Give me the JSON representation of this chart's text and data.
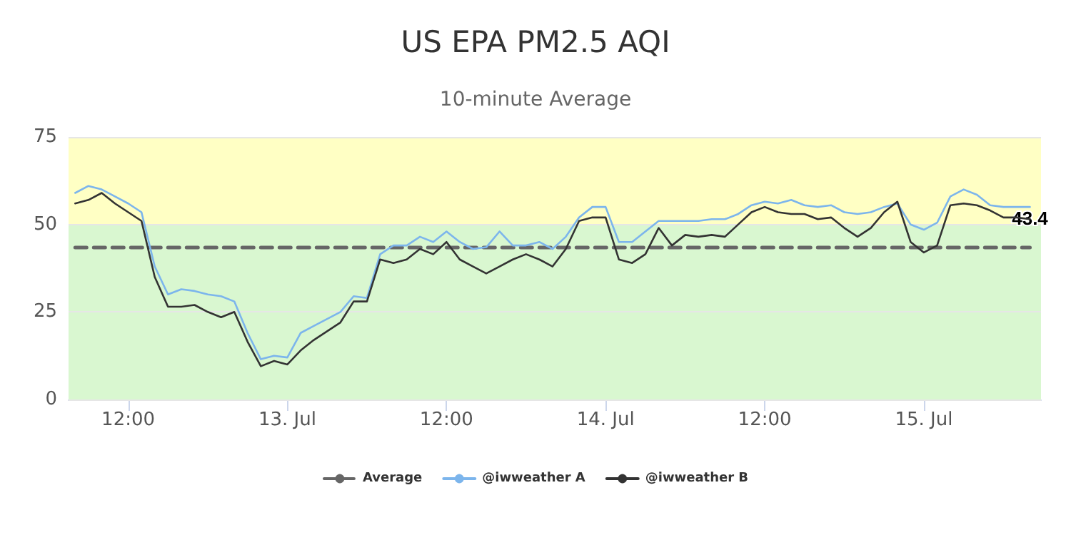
{
  "chart_data": {
    "type": "line",
    "title": "US EPA PM2.5 AQI",
    "subtitle": "10-minute Average",
    "x": [
      "--07-12T08:00",
      "--07-12T09:00",
      "--07-12T10:00",
      "--07-12T11:00",
      "--07-12T12:00",
      "--07-12T13:00",
      "--07-12T14:00",
      "--07-12T15:00",
      "--07-12T16:00",
      "--07-12T17:00",
      "--07-12T18:00",
      "--07-12T19:00",
      "--07-12T20:00",
      "--07-12T21:00",
      "--07-12T22:00",
      "--07-12T23:00",
      "--07-13T00:00",
      "--07-13T01:00",
      "--07-13T02:00",
      "--07-13T03:00",
      "--07-13T04:00",
      "--07-13T05:00",
      "--07-13T06:00",
      "--07-13T07:00",
      "--07-13T08:00",
      "--07-13T09:00",
      "--07-13T10:00",
      "--07-13T11:00",
      "--07-13T12:00",
      "--07-13T13:00",
      "--07-13T14:00",
      "--07-13T15:00",
      "--07-13T16:00",
      "--07-13T17:00",
      "--07-13T18:00",
      "--07-13T19:00",
      "--07-13T20:00",
      "--07-13T21:00",
      "--07-13T22:00",
      "--07-13T23:00",
      "--07-14T00:00",
      "--07-14T01:00",
      "--07-14T02:00",
      "--07-14T03:00",
      "--07-14T04:00",
      "--07-14T05:00",
      "--07-14T06:00",
      "--07-14T07:00",
      "--07-14T08:00",
      "--07-14T09:00",
      "--07-14T10:00",
      "--07-14T11:00",
      "--07-14T12:00",
      "--07-14T13:00",
      "--07-14T14:00",
      "--07-14T15:00",
      "--07-14T16:00",
      "--07-14T17:00",
      "--07-14T18:00",
      "--07-14T19:00",
      "--07-14T20:00",
      "--07-14T21:00",
      "--07-14T22:00",
      "--07-14T23:00",
      "--07-15T00:00",
      "--07-15T01:00",
      "--07-15T02:00",
      "--07-15T03:00",
      "--07-15T04:00",
      "--07-15T05:00",
      "--07-15T06:00",
      "--07-15T07:00",
      "--07-15T08:00"
    ],
    "series": [
      {
        "name": "Average",
        "color": "#666666",
        "line_style": "dashed",
        "x": [
          "--07-12T08:00",
          "--07-15T08:00"
        ],
        "values": [
          43.4,
          43.4
        ],
        "value_labels": [
          null,
          "43.4"
        ]
      },
      {
        "name": "@iwweather A",
        "color": "#7cb5ec",
        "values": [
          59,
          61,
          60,
          58,
          56,
          53.5,
          38,
          30,
          31.5,
          31,
          30,
          29.5,
          28,
          19,
          11.5,
          12.5,
          12,
          19,
          21,
          23,
          25,
          29.5,
          29,
          41.5,
          44,
          44,
          46.5,
          45,
          48,
          45,
          43,
          43.5,
          48,
          44,
          44,
          45,
          43,
          46.5,
          52,
          55,
          55,
          45,
          45,
          48,
          51,
          51,
          51,
          51,
          51.5,
          51.5,
          53,
          55.5,
          56.5,
          56,
          57,
          55.5,
          55,
          55.5,
          53.5,
          53,
          53.5,
          55,
          56,
          50,
          48.5,
          50.5,
          58,
          60,
          58.5,
          55.5,
          55,
          55,
          55
        ]
      },
      {
        "name": "@iwweather B",
        "color": "#333333",
        "values": [
          56,
          57,
          59,
          56,
          53.5,
          51,
          35,
          26.5,
          26.5,
          27,
          25,
          23.5,
          25,
          16.5,
          9.5,
          11,
          10,
          14,
          17,
          19.5,
          22,
          28,
          28,
          40,
          39,
          40,
          43,
          41.5,
          45,
          40,
          38,
          36,
          38,
          40,
          41.5,
          40,
          38,
          43,
          51,
          52,
          52,
          40,
          39,
          41.5,
          49,
          44,
          47,
          46.5,
          47,
          46.5,
          50,
          53.5,
          55,
          53.5,
          53,
          53,
          51.5,
          52,
          49,
          46.5,
          49,
          53.5,
          56.5,
          45,
          42,
          44,
          55.5,
          56,
          55.5,
          54,
          52,
          52,
          51.5
        ]
      }
    ],
    "xlim": [
      "--07-12T07:30",
      "--07-15T08:50"
    ],
    "xticks": [
      {
        "value": "--07-12T12:00",
        "label": "12:00"
      },
      {
        "value": "--07-13T00:00",
        "label": "13. Jul"
      },
      {
        "value": "--07-13T12:00",
        "label": "12:00"
      },
      {
        "value": "--07-14T00:00",
        "label": "14. Jul"
      },
      {
        "value": "--07-14T12:00",
        "label": "12:00"
      },
      {
        "value": "--07-15T00:00",
        "label": "15. Jul"
      }
    ],
    "ylim": [
      0,
      75
    ],
    "yticks": [
      0,
      25,
      50,
      75
    ],
    "bands": [
      {
        "axis": "y",
        "from": 0,
        "to": 50,
        "color": "#d9f7d0"
      },
      {
        "axis": "y",
        "from": 50,
        "to": 75,
        "color": "#ffffc4"
      }
    ],
    "grid": "y",
    "legend": "bottom"
  }
}
